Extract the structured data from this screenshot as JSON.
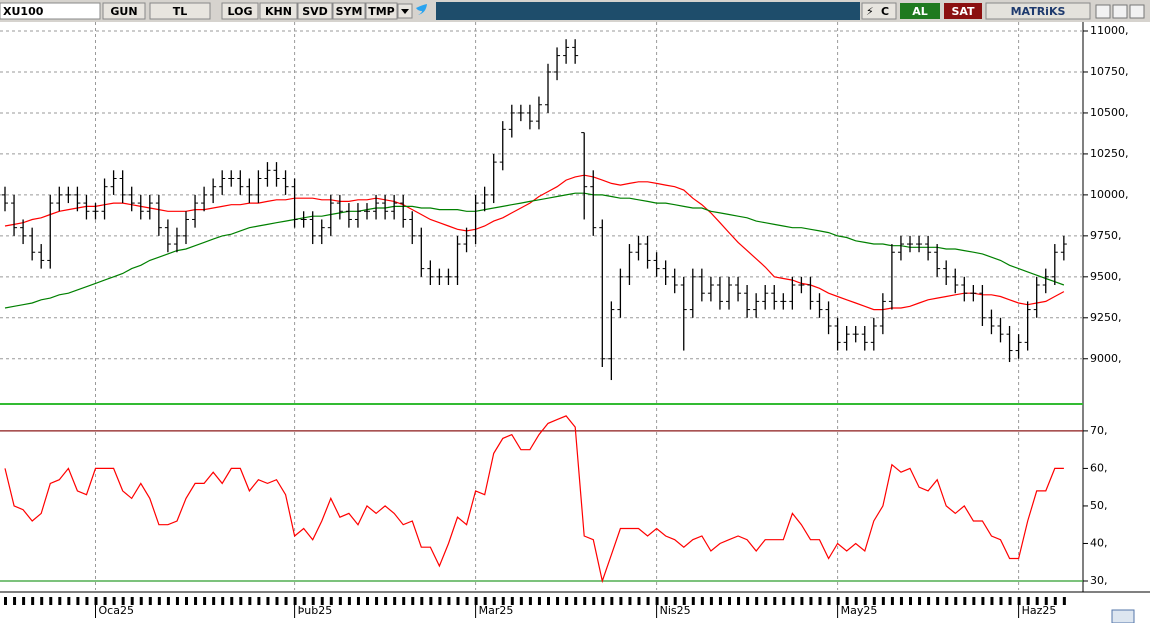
{
  "toolbar": {
    "symbol": "XU100",
    "buttons": [
      "GUN",
      "TL",
      "LOG",
      "KHN",
      "SVD",
      "SYM",
      "TMP"
    ],
    "buy": "AL",
    "sell": "SAT",
    "brand": "MATRiKS"
  },
  "chart_data": [
    {
      "type": "ohlc",
      "color": "#000000",
      "grid": true,
      "categories": [
        null,
        null,
        null,
        null,
        null,
        null,
        null,
        null,
        null,
        null,
        "Oca25",
        null,
        null,
        null,
        null,
        null,
        null,
        null,
        null,
        null,
        null,
        null,
        null,
        null,
        null,
        null,
        null,
        null,
        null,
        null,
        null,
        null,
        "Þub25",
        null,
        null,
        null,
        null,
        null,
        null,
        null,
        null,
        null,
        null,
        null,
        null,
        null,
        null,
        null,
        null,
        null,
        null,
        null,
        "Mar25",
        null,
        null,
        null,
        null,
        null,
        null,
        null,
        null,
        null,
        null,
        null,
        null,
        null,
        null,
        null,
        null,
        null,
        null,
        null,
        "Nis25",
        null,
        null,
        null,
        null,
        null,
        null,
        null,
        null,
        null,
        null,
        null,
        null,
        null,
        null,
        null,
        null,
        null,
        null,
        null,
        "May25",
        null,
        null,
        null,
        null,
        null,
        null,
        null,
        null,
        null,
        null,
        null,
        null,
        null,
        null,
        null,
        null,
        null,
        null,
        null,
        "Haz25",
        null,
        null,
        null,
        null,
        null
      ],
      "open": [
        10000,
        9950,
        9800,
        9750,
        9650,
        9600,
        9950,
        10000,
        10000,
        9950,
        9900,
        9900,
        10050,
        10100,
        10000,
        9950,
        9900,
        9950,
        9800,
        9700,
        9750,
        9850,
        9950,
        10000,
        10050,
        10100,
        10100,
        10050,
        10000,
        10100,
        10150,
        10100,
        10050,
        9850,
        9850,
        9750,
        9800,
        9950,
        9900,
        9850,
        9900,
        9900,
        9950,
        9900,
        9950,
        9850,
        9750,
        9550,
        9500,
        9500,
        9500,
        9700,
        9750,
        9950,
        10000,
        10200,
        10400,
        10500,
        10500,
        10450,
        10550,
        10750,
        10850,
        10900,
        10380,
        10050,
        9800,
        9000,
        9300,
        9500,
        9650,
        9700,
        9600,
        9550,
        9500,
        9450,
        9300,
        9500,
        9400,
        9450,
        9350,
        9450,
        9400,
        9300,
        9350,
        9400,
        9350,
        9350,
        9450,
        9450,
        9350,
        9300,
        9200,
        9100,
        9150,
        9150,
        9100,
        9200,
        9350,
        9650,
        9700,
        9700,
        9700,
        9650,
        9550,
        9500,
        9450,
        9400,
        9400,
        9250,
        9200,
        9150,
        9050,
        9100,
        9300,
        9450,
        9500,
        9650
      ],
      "high": [
        10050,
        10000,
        9850,
        9800,
        9700,
        10000,
        10050,
        10050,
        10050,
        10000,
        9950,
        10100,
        10150,
        10150,
        10050,
        10000,
        10000,
        10000,
        9850,
        9800,
        9900,
        10000,
        10050,
        10100,
        10150,
        10150,
        10150,
        10100,
        10150,
        10200,
        10200,
        10150,
        10100,
        9900,
        9900,
        9850,
        10000,
        10000,
        9950,
        9950,
        9950,
        10000,
        10000,
        10000,
        10000,
        9900,
        9800,
        9600,
        9550,
        9550,
        9750,
        9800,
        10000,
        10050,
        10250,
        10450,
        10550,
        10550,
        10550,
        10600,
        10800,
        10900,
        10950,
        10950,
        10380,
        10150,
        9850,
        9350,
        9550,
        9700,
        9750,
        9750,
        9650,
        9600,
        9550,
        9500,
        9550,
        9550,
        9500,
        9500,
        9500,
        9500,
        9450,
        9400,
        9450,
        9450,
        9400,
        9500,
        9500,
        9500,
        9400,
        9350,
        9250,
        9200,
        9200,
        9200,
        9250,
        9400,
        9700,
        9750,
        9750,
        9750,
        9750,
        9700,
        9600,
        9550,
        9500,
        9450,
        9450,
        9300,
        9250,
        9200,
        9150,
        9350,
        9500,
        9550,
        9700,
        9750
      ],
      "low": [
        9900,
        9750,
        9700,
        9600,
        9550,
        9550,
        9900,
        9950,
        9900,
        9850,
        9850,
        9850,
        10000,
        9950,
        9900,
        9850,
        9850,
        9750,
        9650,
        9650,
        9700,
        9800,
        9900,
        9950,
        10000,
        10050,
        10000,
        9950,
        9950,
        10050,
        10050,
        10000,
        9800,
        9800,
        9700,
        9700,
        9750,
        9850,
        9800,
        9800,
        9850,
        9850,
        9850,
        9850,
        9800,
        9700,
        9500,
        9450,
        9450,
        9450,
        9450,
        9650,
        9700,
        9900,
        9950,
        10150,
        10350,
        10450,
        10400,
        10400,
        10500,
        10700,
        10800,
        10800,
        9850,
        9750,
        8950,
        8870,
        9250,
        9450,
        9600,
        9550,
        9500,
        9450,
        9400,
        9050,
        9250,
        9350,
        9350,
        9300,
        9300,
        9350,
        9250,
        9250,
        9300,
        9300,
        9300,
        9300,
        9400,
        9300,
        9250,
        9150,
        9050,
        9050,
        9100,
        9050,
        9050,
        9150,
        9300,
        9600,
        9650,
        9650,
        9600,
        9500,
        9450,
        9400,
        9350,
        9350,
        9200,
        9150,
        9100,
        8980,
        9000,
        9050,
        9250,
        9400,
        9450,
        9600
      ],
      "close": [
        9950,
        9800,
        9750,
        9650,
        9600,
        9950,
        10000,
        10000,
        9950,
        9900,
        9900,
        10050,
        10100,
        10000,
        9950,
        9900,
        9950,
        9800,
        9700,
        9750,
        9850,
        9950,
        10000,
        10050,
        10100,
        10100,
        10050,
        10000,
        10100,
        10150,
        10100,
        10050,
        9850,
        9850,
        9750,
        9800,
        9950,
        9900,
        9850,
        9900,
        9900,
        9950,
        9900,
        9950,
        9850,
        9750,
        9550,
        9500,
        9500,
        9500,
        9700,
        9750,
        9950,
        10000,
        10200,
        10400,
        10500,
        10500,
        10450,
        10550,
        10750,
        10850,
        10900,
        10850,
        10050,
        9800,
        9000,
        9300,
        9500,
        9650,
        9700,
        9600,
        9550,
        9500,
        9450,
        9300,
        9500,
        9400,
        9450,
        9350,
        9450,
        9400,
        9300,
        9350,
        9400,
        9350,
        9350,
        9450,
        9450,
        9350,
        9300,
        9200,
        9100,
        9150,
        9150,
        9100,
        9200,
        9350,
        9650,
        9700,
        9700,
        9700,
        9650,
        9550,
        9500,
        9450,
        9400,
        9400,
        9250,
        9200,
        9150,
        9050,
        9100,
        9300,
        9450,
        9500,
        9650,
        9700
      ],
      "lines": [
        {
          "color": "#ff0000",
          "values": [
            9810,
            9820,
            9830,
            9850,
            9860,
            9880,
            9900,
            9910,
            9920,
            9930,
            9930,
            9940,
            9950,
            9950,
            9940,
            9930,
            9920,
            9910,
            9900,
            9900,
            9900,
            9910,
            9910,
            9920,
            9930,
            9940,
            9940,
            9950,
            9950,
            9960,
            9970,
            9970,
            9980,
            9980,
            9980,
            9970,
            9970,
            9960,
            9960,
            9970,
            9970,
            9980,
            9970,
            9960,
            9940,
            9910,
            9880,
            9850,
            9830,
            9810,
            9790,
            9780,
            9790,
            9810,
            9840,
            9860,
            9890,
            9920,
            9950,
            9990,
            10020,
            10050,
            10090,
            10110,
            10120,
            10110,
            10090,
            10070,
            10060,
            10070,
            10080,
            10080,
            10070,
            10060,
            10050,
            10030,
            9980,
            9940,
            9890,
            9830,
            9770,
            9710,
            9660,
            9610,
            9560,
            9500,
            9490,
            9480,
            9460,
            9450,
            9430,
            9400,
            9380,
            9360,
            9340,
            9320,
            9300,
            9300,
            9310,
            9310,
            9320,
            9340,
            9360,
            9370,
            9380,
            9390,
            9400,
            9400,
            9390,
            9390,
            9380,
            9360,
            9340,
            9330,
            9340,
            9350,
            9380,
            9410
          ]
        },
        {
          "color": "#008000",
          "values": [
            9310,
            9320,
            9330,
            9340,
            9360,
            9370,
            9390,
            9400,
            9420,
            9440,
            9460,
            9480,
            9500,
            9520,
            9550,
            9570,
            9600,
            9620,
            9640,
            9660,
            9670,
            9690,
            9710,
            9730,
            9750,
            9760,
            9780,
            9800,
            9810,
            9820,
            9830,
            9840,
            9850,
            9860,
            9870,
            9870,
            9880,
            9890,
            9900,
            9900,
            9910,
            9920,
            9920,
            9930,
            9930,
            9930,
            9920,
            9920,
            9910,
            9910,
            9910,
            9900,
            9900,
            9910,
            9920,
            9930,
            9940,
            9950,
            9960,
            9970,
            9980,
            9990,
            10000,
            10010,
            10010,
            10000,
            10000,
            9990,
            9980,
            9980,
            9970,
            9960,
            9950,
            9950,
            9940,
            9930,
            9920,
            9920,
            9900,
            9890,
            9880,
            9870,
            9860,
            9840,
            9830,
            9820,
            9810,
            9800,
            9800,
            9790,
            9780,
            9770,
            9750,
            9740,
            9720,
            9710,
            9700,
            9700,
            9690,
            9690,
            9680,
            9680,
            9680,
            9680,
            9670,
            9670,
            9660,
            9650,
            9640,
            9620,
            9600,
            9570,
            9550,
            9530,
            9510,
            9490,
            9470,
            9450
          ]
        }
      ],
      "ylim": [
        8730,
        11055
      ],
      "yticks": [
        {
          "value": 9000,
          "label": "9000,"
        },
        {
          "value": 9250,
          "label": "9250,"
        },
        {
          "value": 9500,
          "label": "9500,"
        },
        {
          "value": 9750,
          "label": "9750,"
        },
        {
          "value": 10000,
          "label": "10000,"
        },
        {
          "value": 10250,
          "label": "10250,"
        },
        {
          "value": 10500,
          "label": "10500,"
        },
        {
          "value": 10750,
          "label": "10750,"
        },
        {
          "value": 11000,
          "label": "11000,"
        }
      ]
    },
    {
      "type": "line",
      "color": "#ff0000",
      "values": [
        60,
        50,
        49,
        46,
        48,
        56,
        57,
        60,
        54,
        53,
        60,
        60,
        60,
        54,
        52,
        56,
        52,
        45,
        45,
        46,
        52,
        56,
        56,
        59,
        56,
        60,
        60,
        54,
        57,
        56,
        57,
        53,
        42,
        44,
        41,
        46,
        52,
        47,
        48,
        45,
        50,
        48,
        50,
        48,
        45,
        46,
        39,
        39,
        34,
        40,
        47,
        45,
        54,
        53,
        64,
        68,
        69,
        65,
        65,
        69,
        72,
        73,
        74,
        71,
        42,
        41,
        30,
        37,
        44,
        44,
        44,
        42,
        44,
        42,
        41,
        39,
        41,
        42,
        38,
        40,
        41,
        42,
        41,
        38,
        41,
        41,
        41,
        48,
        45,
        41,
        41,
        36,
        40,
        38,
        40,
        38,
        46,
        50,
        61,
        59,
        60,
        55,
        54,
        57,
        50,
        48,
        50,
        46,
        46,
        42,
        41,
        36,
        36,
        46,
        54,
        54,
        60,
        60
      ],
      "ylim": [
        27.6,
        76.1
      ],
      "yticks": [
        {
          "value": 30,
          "label": "30,"
        },
        {
          "value": 40,
          "label": "40,"
        },
        {
          "value": 50,
          "label": "50,"
        },
        {
          "value": 60,
          "label": "60,"
        },
        {
          "value": 70,
          "label": "70,"
        }
      ],
      "reference_lines": [
        {
          "value": 70,
          "color": "#8b1a1a"
        },
        {
          "value": 30,
          "color": "#2e9e2e"
        }
      ]
    }
  ]
}
